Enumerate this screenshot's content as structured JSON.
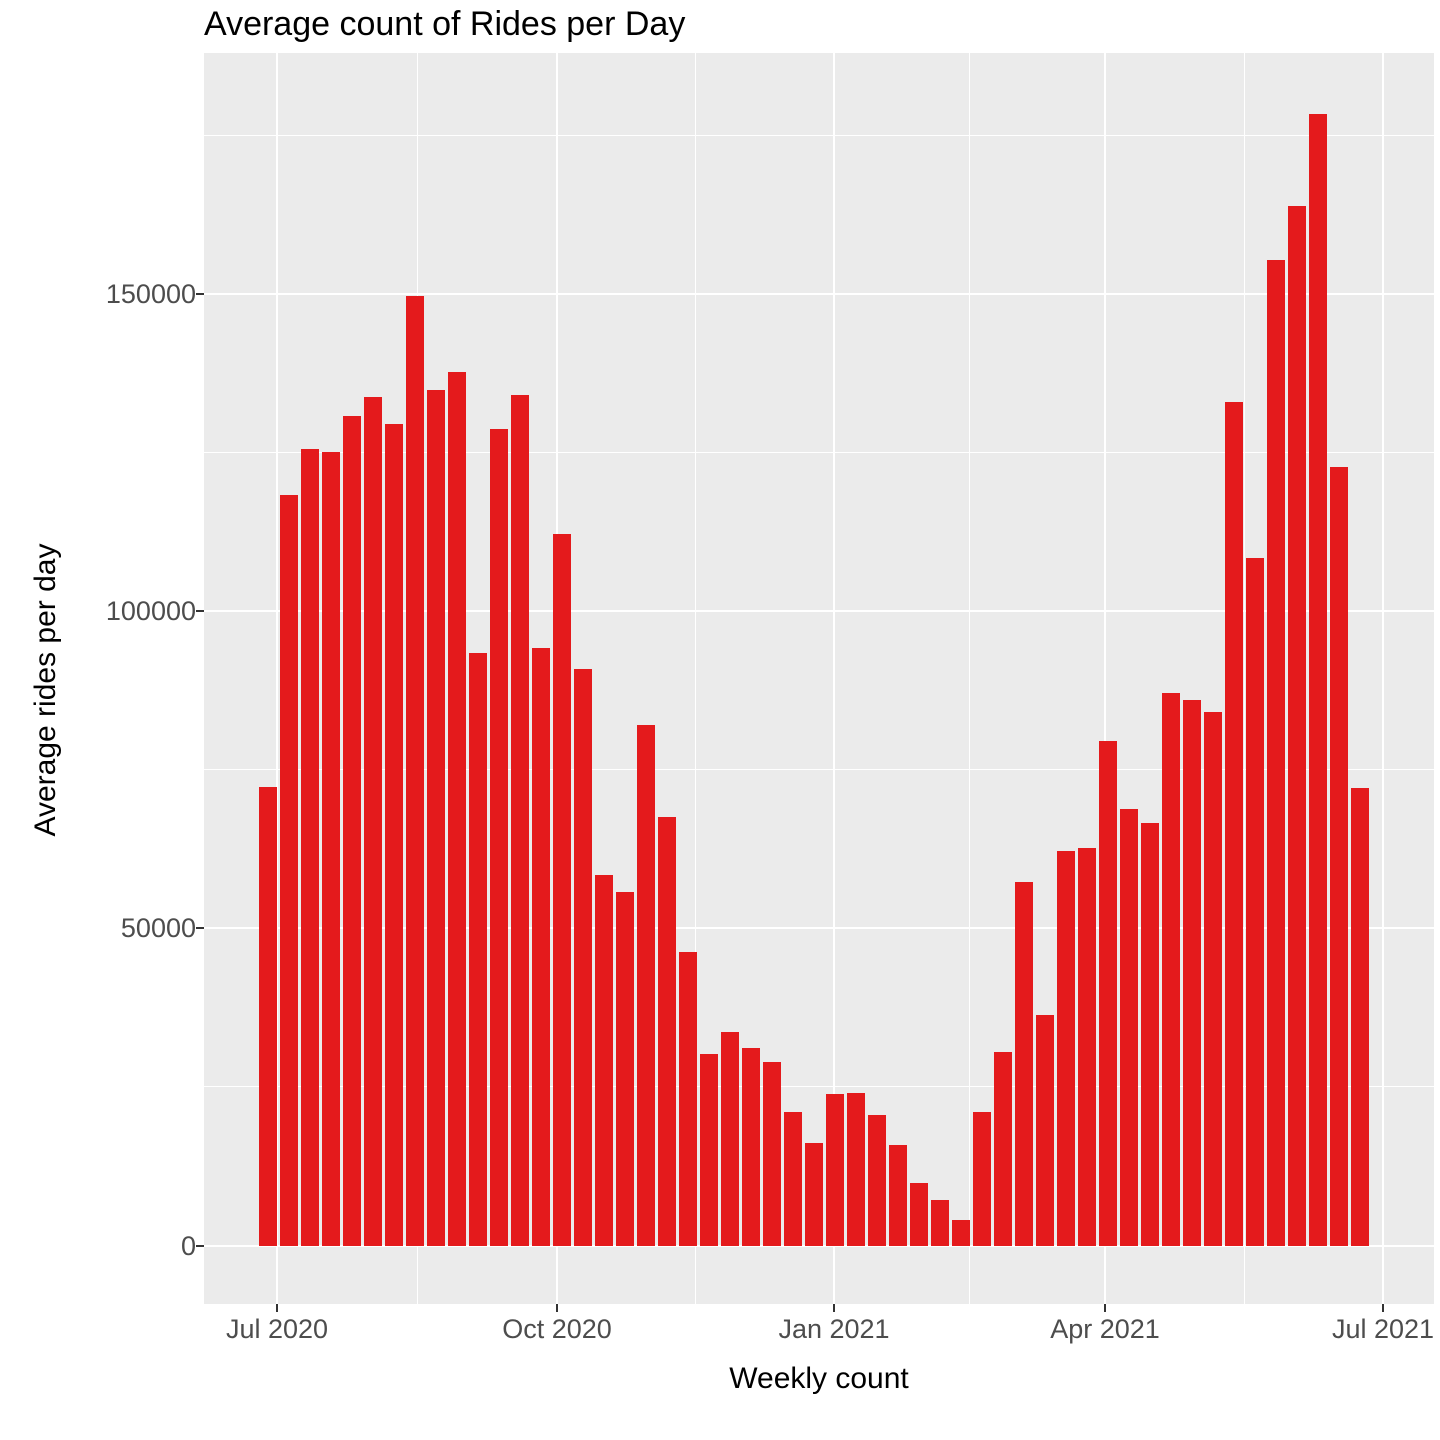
{
  "chart": {
    "title": "Average count of Rides per Day",
    "x_axis_title": "Weekly count",
    "y_axis_title": "Average rides per day"
  },
  "colors": {
    "bar": "#E41A1C",
    "panel_background": "#EBEBEB",
    "gridline": "#FFFFFF",
    "axis_text": "#4D4D4D",
    "tick_mark": "#333333",
    "title_text": "#000000"
  },
  "chart_data": {
    "type": "bar",
    "title": "Average count of Rides per Day",
    "xlabel": "Weekly count",
    "ylabel": "Average rides per day",
    "legend": "none",
    "grid": "white major and minor gridlines on gray panel",
    "x_tick_labels": [
      "Jul 2020",
      "Oct 2020",
      "Jan 2021",
      "Apr 2021",
      "Jul 2021"
    ],
    "y_ticks": [
      0,
      50000,
      100000,
      150000
    ],
    "y_tick_labels": [
      "0",
      "50000",
      "100000",
      "150000"
    ],
    "y_minor_ticks": [
      25000,
      75000,
      125000,
      175000
    ],
    "ylim": [
      -9000,
      187500
    ],
    "bar_unit": "one bar per week",
    "weeks": [
      "2020-06-29",
      "2020-07-06",
      "2020-07-13",
      "2020-07-20",
      "2020-07-27",
      "2020-08-03",
      "2020-08-10",
      "2020-08-17",
      "2020-08-24",
      "2020-08-31",
      "2020-09-07",
      "2020-09-14",
      "2020-09-21",
      "2020-09-28",
      "2020-10-05",
      "2020-10-12",
      "2020-10-19",
      "2020-10-26",
      "2020-11-02",
      "2020-11-09",
      "2020-11-16",
      "2020-11-23",
      "2020-11-30",
      "2020-12-07",
      "2020-12-14",
      "2020-12-21",
      "2020-12-28",
      "2021-01-04",
      "2021-01-11",
      "2021-01-18",
      "2021-01-25",
      "2021-02-01",
      "2021-02-08",
      "2021-02-15",
      "2021-02-22",
      "2021-03-01",
      "2021-03-08",
      "2021-03-15",
      "2021-03-22",
      "2021-03-29",
      "2021-04-05",
      "2021-04-12",
      "2021-04-19",
      "2021-04-26",
      "2021-05-03",
      "2021-05-10",
      "2021-05-17",
      "2021-05-24",
      "2021-05-31",
      "2021-06-07",
      "2021-06-14",
      "2021-06-21",
      "2021-06-28"
    ],
    "values": [
      72300,
      118300,
      125600,
      125200,
      130800,
      133800,
      129500,
      149700,
      135000,
      137800,
      93500,
      128800,
      134200,
      94300,
      112200,
      91000,
      58500,
      55700,
      82100,
      67600,
      46300,
      30200,
      33600,
      31200,
      28900,
      21100,
      16100,
      23900,
      24100,
      20600,
      15900,
      9800,
      7100,
      4100,
      21100,
      30500,
      57400,
      36300,
      62200,
      62700,
      79500,
      68800,
      66600,
      87100,
      86000,
      84200,
      133000,
      108400,
      155400,
      163900,
      178400,
      122800,
      72100
    ]
  }
}
